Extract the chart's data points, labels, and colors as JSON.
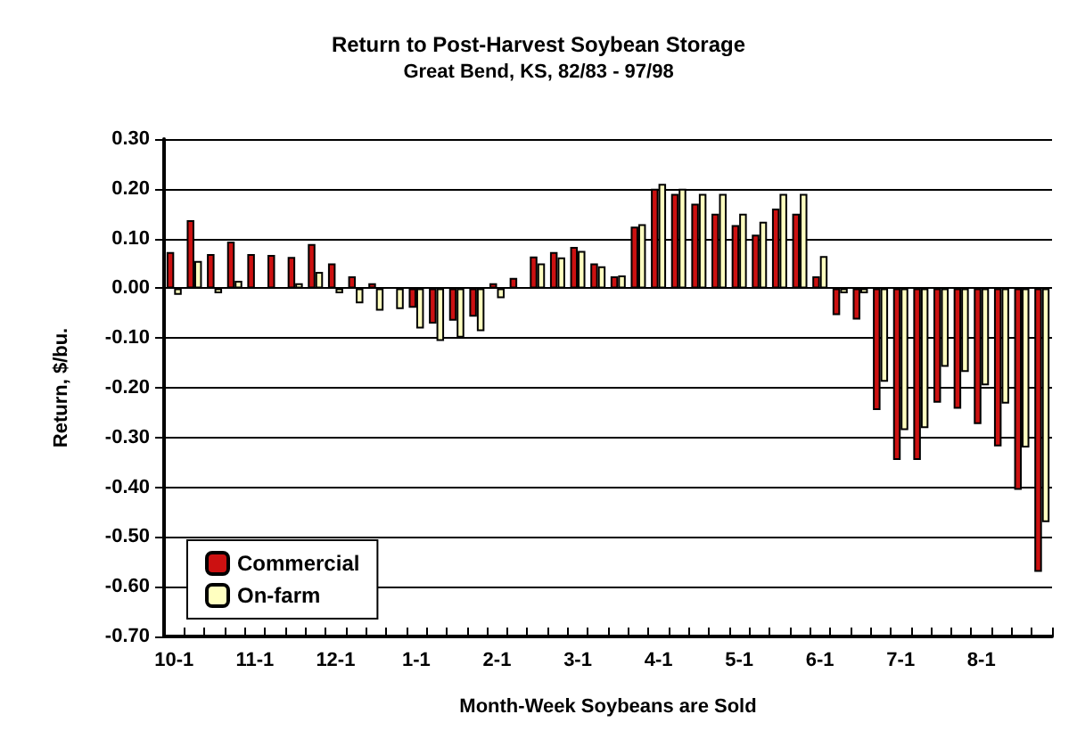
{
  "chart_data": {
    "type": "bar",
    "title": "Return to Post-Harvest Soybean Storage",
    "subtitle": "Great Bend, KS, 82/83 - 97/98",
    "xlabel": "Month-Week Soybeans are Sold",
    "ylabel": "Return, $/bu.",
    "categories": [
      "10-1",
      null,
      null,
      null,
      "11-1",
      null,
      null,
      null,
      "12-1",
      null,
      null,
      null,
      "1-1",
      null,
      null,
      null,
      "2-1",
      null,
      null,
      null,
      "3-1",
      null,
      null,
      null,
      "4-1",
      null,
      null,
      null,
      "5-1",
      null,
      null,
      null,
      "6-1",
      null,
      null,
      null,
      "7-1",
      null,
      null,
      null,
      "8-1",
      null,
      null,
      null
    ],
    "series": [
      {
        "name": "Commercial",
        "color": "#cc1111",
        "values": [
          0.073,
          0.137,
          0.069,
          0.094,
          0.069,
          0.067,
          0.063,
          0.089,
          0.05,
          0.024,
          0.01,
          null,
          -0.039,
          -0.071,
          -0.065,
          -0.057,
          0.01,
          0.021,
          0.064,
          0.073,
          0.083,
          0.05,
          0.024,
          0.124,
          0.2,
          0.19,
          0.17,
          0.15,
          0.127,
          0.108,
          0.16,
          0.15,
          0.024,
          -0.054,
          -0.063,
          -0.245,
          -0.345,
          -0.345,
          -0.23,
          -0.242,
          -0.273,
          -0.318,
          -0.405,
          -0.57
        ]
      },
      {
        "name": "On-farm",
        "color": "#ffffc0",
        "values": [
          -0.013,
          0.055,
          -0.01,
          0.015,
          null,
          null,
          0.01,
          0.033,
          -0.01,
          -0.03,
          -0.045,
          -0.042,
          -0.081,
          -0.106,
          -0.099,
          -0.086,
          -0.02,
          null,
          0.05,
          0.062,
          0.075,
          0.044,
          0.026,
          0.129,
          0.21,
          0.2,
          0.19,
          0.19,
          0.15,
          0.134,
          0.19,
          0.19,
          0.065,
          -0.01,
          -0.01,
          -0.188,
          -0.285,
          -0.281,
          -0.158,
          -0.168,
          -0.195,
          -0.232,
          -0.32,
          -0.47
        ]
      }
    ],
    "ylim": [
      -0.7,
      0.3
    ],
    "yticks": [
      {
        "value": -0.7,
        "label": "-0.70"
      },
      {
        "value": -0.6,
        "label": "-0.60"
      },
      {
        "value": -0.5,
        "label": "-0.50"
      },
      {
        "value": -0.4,
        "label": "-0.40"
      },
      {
        "value": -0.3,
        "label": "-0.30"
      },
      {
        "value": -0.2,
        "label": "-0.20"
      },
      {
        "value": -0.1,
        "label": "-0.10"
      },
      {
        "value": 0,
        "label": "0.00"
      },
      {
        "value": 0.1,
        "label": "0.10"
      },
      {
        "value": 0.2,
        "label": "0.20"
      },
      {
        "value": 0.3,
        "label": "0.30"
      }
    ],
    "grid": "y",
    "legend": "bottom left"
  }
}
